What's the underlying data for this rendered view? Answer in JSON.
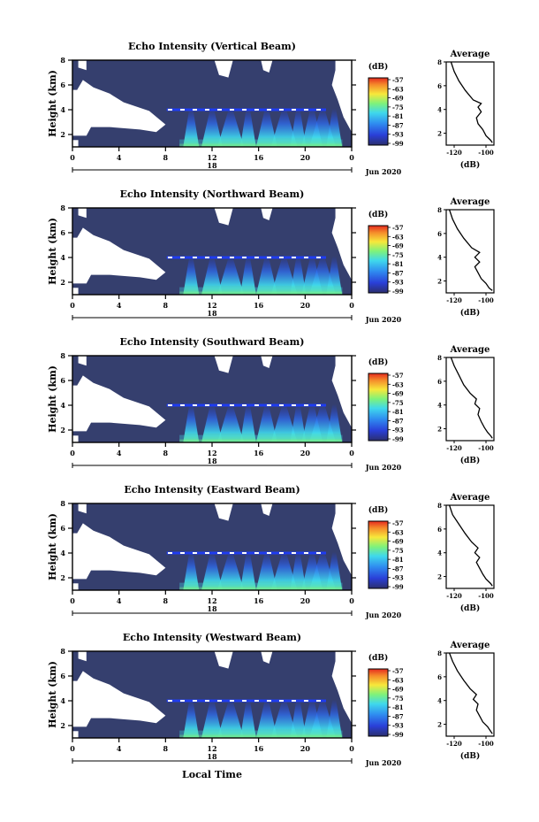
{
  "figure": {
    "x_axis_label": "Local Time",
    "date_label": "Jun 2020",
    "day_label": "18",
    "colorbar_unit": "(dB)",
    "average_title": "Average",
    "average_xlabel": "(dB)",
    "colors": {
      "background_echo": "#353f6e",
      "echo_blue": "#1f3cf0",
      "echo_cyan": "#3fd8ec",
      "echo_green": "#7ff27a",
      "echo_yellow": "#f7e83b",
      "no_data": "#ffffff"
    }
  },
  "chart_data": [
    {
      "type": "heatmap",
      "title": "Echo Intensity (Vertical Beam)",
      "ylabel": "Height (km)",
      "xlabel": "",
      "x_ticks": [
        "0",
        "4",
        "8",
        "12",
        "16",
        "20",
        "0"
      ],
      "y_ticks": [
        "2",
        "4",
        "6",
        "8"
      ],
      "x_range_hours": [
        0,
        24
      ],
      "y_range_km": [
        1,
        8
      ],
      "colorbar_ticks": [
        "-57",
        "-63",
        "-69",
        "-75",
        "-81",
        "-87",
        "-93",
        "-99"
      ],
      "bright_layer_height_km": 4,
      "average": {
        "type": "line",
        "title": "Average",
        "xlabel": "(dB)",
        "x_ticks": [
          "-120",
          "-100"
        ],
        "y_ticks": [
          "2",
          "4",
          "6",
          "8"
        ],
        "points": [
          [
            -122,
            8
          ],
          [
            -120,
            7.2
          ],
          [
            -117,
            6.4
          ],
          [
            -113,
            5.6
          ],
          [
            -108,
            4.8
          ],
          [
            -103,
            4.5
          ],
          [
            -105,
            4.2
          ],
          [
            -103,
            3.8
          ],
          [
            -106,
            3.3
          ],
          [
            -105,
            2.8
          ],
          [
            -102,
            2.3
          ],
          [
            -100,
            1.8
          ],
          [
            -97,
            1.4
          ],
          [
            -96,
            1.2
          ]
        ]
      }
    },
    {
      "type": "heatmap",
      "title": "Echo Intensity (Northward Beam)",
      "ylabel": "Height (km)",
      "xlabel": "",
      "x_ticks": [
        "0",
        "4",
        "8",
        "12",
        "16",
        "20",
        "0"
      ],
      "y_ticks": [
        "2",
        "4",
        "6",
        "8"
      ],
      "x_range_hours": [
        0,
        24
      ],
      "y_range_km": [
        1,
        8
      ],
      "colorbar_ticks": [
        "-57",
        "-63",
        "-69",
        "-75",
        "-81",
        "-87",
        "-93",
        "-99"
      ],
      "bright_layer_height_km": 4,
      "average": {
        "type": "line",
        "title": "Average",
        "xlabel": "(dB)",
        "x_ticks": [
          "-120",
          "-100"
        ],
        "y_ticks": [
          "2",
          "4",
          "6",
          "8"
        ],
        "points": [
          [
            -123,
            8
          ],
          [
            -121,
            7.2
          ],
          [
            -118,
            6.4
          ],
          [
            -114,
            5.6
          ],
          [
            -109,
            4.8
          ],
          [
            -104,
            4.4
          ],
          [
            -107,
            4.0
          ],
          [
            -104,
            3.6
          ],
          [
            -107,
            3.2
          ],
          [
            -105,
            2.7
          ],
          [
            -103,
            2.2
          ],
          [
            -100,
            1.8
          ],
          [
            -98,
            1.4
          ],
          [
            -96,
            1.2
          ]
        ]
      }
    },
    {
      "type": "heatmap",
      "title": "Echo Intensity (Southward Beam)",
      "ylabel": "Height (km)",
      "xlabel": "",
      "x_ticks": [
        "0",
        "4",
        "8",
        "12",
        "16",
        "20",
        "0"
      ],
      "y_ticks": [
        "2",
        "4",
        "6",
        "8"
      ],
      "x_range_hours": [
        0,
        24
      ],
      "y_range_km": [
        1,
        8
      ],
      "colorbar_ticks": [
        "-57",
        "-63",
        "-69",
        "-75",
        "-81",
        "-87",
        "-93",
        "-99"
      ],
      "bright_layer_height_km": 4,
      "average": {
        "type": "line",
        "title": "Average",
        "xlabel": "(dB)",
        "x_ticks": [
          "-120",
          "-100"
        ],
        "y_ticks": [
          "2",
          "4",
          "6",
          "8"
        ],
        "points": [
          [
            -122,
            8
          ],
          [
            -120,
            7.3
          ],
          [
            -117,
            6.5
          ],
          [
            -114,
            5.7
          ],
          [
            -110,
            5.0
          ],
          [
            -106,
            4.5
          ],
          [
            -107,
            4.1
          ],
          [
            -104,
            3.7
          ],
          [
            -105,
            3.2
          ],
          [
            -103,
            2.6
          ],
          [
            -101,
            2.1
          ],
          [
            -99,
            1.7
          ],
          [
            -97,
            1.4
          ],
          [
            -96,
            1.2
          ]
        ]
      }
    },
    {
      "type": "heatmap",
      "title": "Echo Intensity (Eastward Beam)",
      "ylabel": "Height (km)",
      "xlabel": "",
      "x_ticks": [
        "0",
        "4",
        "8",
        "12",
        "16",
        "20",
        "0"
      ],
      "y_ticks": [
        "2",
        "4",
        "6",
        "8"
      ],
      "x_range_hours": [
        0,
        24
      ],
      "y_range_km": [
        1,
        8
      ],
      "colorbar_ticks": [
        "-57",
        "-63",
        "-69",
        "-75",
        "-81",
        "-87",
        "-93",
        "-99"
      ],
      "bright_layer_height_km": 4,
      "average": {
        "type": "line",
        "title": "Average",
        "xlabel": "(dB)",
        "x_ticks": [
          "-120",
          "-100"
        ],
        "y_ticks": [
          "2",
          "4",
          "6",
          "8"
        ],
        "points": [
          [
            -123,
            8
          ],
          [
            -121,
            7.2
          ],
          [
            -117,
            6.4
          ],
          [
            -113,
            5.6
          ],
          [
            -109,
            4.9
          ],
          [
            -105,
            4.4
          ],
          [
            -107,
            4.0
          ],
          [
            -104,
            3.6
          ],
          [
            -106,
            3.2
          ],
          [
            -104,
            2.7
          ],
          [
            -102,
            2.2
          ],
          [
            -100,
            1.8
          ],
          [
            -97,
            1.4
          ],
          [
            -96,
            1.2
          ]
        ]
      }
    },
    {
      "type": "heatmap",
      "title": "Echo Intensity (Westward Beam)",
      "ylabel": "Height (km)",
      "xlabel": "Local Time",
      "x_ticks": [
        "0",
        "4",
        "8",
        "12",
        "16",
        "20",
        "0"
      ],
      "y_ticks": [
        "2",
        "4",
        "6",
        "8"
      ],
      "x_range_hours": [
        0,
        24
      ],
      "y_range_km": [
        1,
        8
      ],
      "colorbar_ticks": [
        "-57",
        "-63",
        "-69",
        "-75",
        "-81",
        "-87",
        "-93",
        "-99"
      ],
      "bright_layer_height_km": 4,
      "average": {
        "type": "line",
        "title": "Average",
        "xlabel": "(dB)",
        "x_ticks": [
          "-120",
          "-100"
        ],
        "y_ticks": [
          "2",
          "4",
          "6",
          "8"
        ],
        "points": [
          [
            -123,
            8
          ],
          [
            -121,
            7.3
          ],
          [
            -118,
            6.5
          ],
          [
            -114,
            5.7
          ],
          [
            -110,
            5.0
          ],
          [
            -106,
            4.5
          ],
          [
            -108,
            4.1
          ],
          [
            -105,
            3.7
          ],
          [
            -106,
            3.2
          ],
          [
            -104,
            2.7
          ],
          [
            -102,
            2.2
          ],
          [
            -99,
            1.8
          ],
          [
            -97,
            1.4
          ],
          [
            -96,
            1.2
          ]
        ]
      }
    }
  ]
}
